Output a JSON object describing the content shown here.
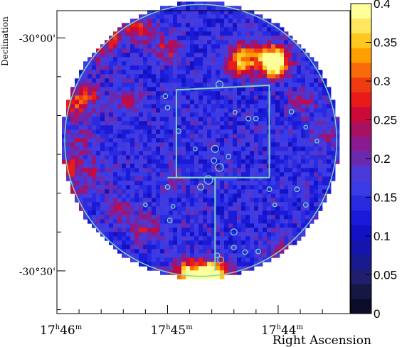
{
  "chart_data": {
    "type": "heatmap",
    "title": "",
    "xlabel": "Right Ascension",
    "ylabel": "Declination",
    "x_ticks": [
      {
        "h": "17",
        "m": "46",
        "ra_min": 0
      },
      {
        "h": "17",
        "m": "45",
        "ra_min": -1
      },
      {
        "h": "17",
        "m": "44",
        "ra_min": -2
      }
    ],
    "x_range_ra_min": [
      0,
      -2.65
    ],
    "y_ticks": [
      {
        "label": "-30°00'",
        "dec_arcmin": 0
      },
      {
        "label": "-30°30'",
        "dec_arcmin": -30
      }
    ],
    "y_range_dec_arcmin": [
      3.5,
      -35.5
    ],
    "colorbar": {
      "min": 0,
      "max": 0.4,
      "ticks": [
        "0",
        "0.05",
        "0.1",
        "0.15",
        "0.2",
        "0.25",
        "0.3",
        "0.35",
        "0.4"
      ],
      "colors": [
        "#0b0b2a",
        "#171746",
        "#1f1f6e",
        "#1a1a90",
        "#1515ad",
        "#1212c4",
        "#1a1ad8",
        "#2a2ae0",
        "#3a3ae6",
        "#4a3ad8",
        "#6a2ab0",
        "#8a1a90",
        "#aa1060",
        "#cc0a3a",
        "#e81a1a",
        "#f03a10",
        "#f86a0a",
        "#ffa000",
        "#ffc820",
        "#ffe860",
        "#ffff99"
      ]
    },
    "field": {
      "background_value": 0.15,
      "hotspots": [
        {
          "ra_min": -0.72,
          "dec_arcmin": 1.5,
          "value": 0.26
        },
        {
          "ra_min": -0.48,
          "dec_arcmin": 0.8,
          "value": 0.25
        },
        {
          "ra_min": -0.38,
          "dec_arcmin": -1.8,
          "value": 0.22
        },
        {
          "ra_min": -0.98,
          "dec_arcmin": -1.2,
          "value": 0.24
        },
        {
          "ra_min": -1.68,
          "dec_arcmin": -2.1,
          "value": 0.28
        },
        {
          "ra_min": -1.95,
          "dec_arcmin": -3.0,
          "value": 0.36
        },
        {
          "ra_min": -1.92,
          "dec_arcmin": -2.5,
          "value": 0.32
        },
        {
          "ra_min": -1.62,
          "dec_arcmin": -3.2,
          "value": 0.25
        },
        {
          "ra_min": -0.25,
          "dec_arcmin": -7.3,
          "value": 0.26
        },
        {
          "ra_min": -0.1,
          "dec_arcmin": -8.5,
          "value": 0.24
        },
        {
          "ra_min": -0.62,
          "dec_arcmin": -7.6,
          "value": 0.23
        },
        {
          "ra_min": -0.18,
          "dec_arcmin": -13.0,
          "value": 0.22
        },
        {
          "ra_min": -0.08,
          "dec_arcmin": -16.5,
          "value": 0.24
        },
        {
          "ra_min": -0.3,
          "dec_arcmin": -17.0,
          "value": 0.22
        },
        {
          "ra_min": -0.15,
          "dec_arcmin": -20.0,
          "value": 0.21
        },
        {
          "ra_min": -0.55,
          "dec_arcmin": -22.0,
          "value": 0.22
        },
        {
          "ra_min": -0.78,
          "dec_arcmin": -24.2,
          "value": 0.24
        },
        {
          "ra_min": -0.15,
          "dec_arcmin": -26.5,
          "value": 0.21
        },
        {
          "ra_min": -1.15,
          "dec_arcmin": -30.2,
          "value": 0.34
        },
        {
          "ra_min": -1.42,
          "dec_arcmin": -30.5,
          "value": 0.4
        },
        {
          "ra_min": -1.3,
          "dec_arcmin": -30.0,
          "value": 0.3
        },
        {
          "ra_min": -2.2,
          "dec_arcmin": -8.0,
          "value": 0.22
        },
        {
          "ra_min": -2.4,
          "dec_arcmin": -12.0,
          "value": 0.21
        },
        {
          "ra_min": -2.4,
          "dec_arcmin": -24.0,
          "value": 0.21
        },
        {
          "ra_min": -2.0,
          "dec_arcmin": -27.5,
          "value": 0.22
        },
        {
          "ra_min": -1.05,
          "dec_arcmin": -17.5,
          "value": 0.2
        }
      ]
    },
    "footprints": {
      "circle": {
        "center_ra_min": -1.3,
        "center_dec_arcmin": -13.2,
        "radius_arcmin": 17.5
      },
      "square": [
        [
          -1.08,
          -6.7
        ],
        [
          -1.92,
          -6.1
        ],
        [
          -1.92,
          -18.0
        ],
        [
          -1.08,
          -18.0
        ]
      ],
      "lower_rect": [
        [
          -1.0,
          -18.0
        ],
        [
          -1.43,
          -18.0
        ],
        [
          -1.43,
          -30.0
        ]
      ]
    },
    "sources": [
      {
        "ra_min": -1.47,
        "dec_arcmin": -6.0,
        "r": 0.45
      },
      {
        "ra_min": -0.98,
        "dec_arcmin": -7.5,
        "r": 0.3
      },
      {
        "ra_min": -1.0,
        "dec_arcmin": -9.0,
        "r": 0.3
      },
      {
        "ra_min": -1.61,
        "dec_arcmin": -9.6,
        "r": 0.25
      },
      {
        "ra_min": -1.73,
        "dec_arcmin": -10.4,
        "r": 0.3
      },
      {
        "ra_min": -1.8,
        "dec_arcmin": -10.4,
        "r": 0.3
      },
      {
        "ra_min": -2.12,
        "dec_arcmin": -9.5,
        "r": 0.3
      },
      {
        "ra_min": -2.25,
        "dec_arcmin": -11.5,
        "r": 0.25
      },
      {
        "ra_min": -2.35,
        "dec_arcmin": -13.3,
        "r": 0.25
      },
      {
        "ra_min": -1.1,
        "dec_arcmin": -12.0,
        "r": 0.3
      },
      {
        "ra_min": -1.25,
        "dec_arcmin": -14.3,
        "r": 0.25
      },
      {
        "ra_min": -1.43,
        "dec_arcmin": -14.3,
        "r": 0.45
      },
      {
        "ra_min": -1.47,
        "dec_arcmin": -16.7,
        "r": 0.5
      },
      {
        "ra_min": -1.42,
        "dec_arcmin": -15.8,
        "r": 0.35
      },
      {
        "ra_min": -1.55,
        "dec_arcmin": -15.3,
        "r": 0.3
      },
      {
        "ra_min": -1.37,
        "dec_arcmin": -18.3,
        "r": 0.55
      },
      {
        "ra_min": -1.3,
        "dec_arcmin": -19.2,
        "r": 0.4
      },
      {
        "ra_min": -1.0,
        "dec_arcmin": -19.2,
        "r": 0.3
      },
      {
        "ra_min": -1.92,
        "dec_arcmin": -19.5,
        "r": 0.3
      },
      {
        "ra_min": -2.17,
        "dec_arcmin": -19.5,
        "r": 0.3
      },
      {
        "ra_min": -0.8,
        "dec_arcmin": -21.5,
        "r": 0.25
      },
      {
        "ra_min": -1.02,
        "dec_arcmin": -23.5,
        "r": 0.3
      },
      {
        "ra_min": -1.05,
        "dec_arcmin": -21.7,
        "r": 0.25
      },
      {
        "ra_min": -1.6,
        "dec_arcmin": -25.0,
        "r": 0.4
      },
      {
        "ra_min": -1.6,
        "dec_arcmin": -27.0,
        "r": 0.3
      },
      {
        "ra_min": -1.82,
        "dec_arcmin": -27.5,
        "r": 0.3
      },
      {
        "ra_min": -1.45,
        "dec_arcmin": -28.0,
        "r": 0.3
      },
      {
        "ra_min": -1.97,
        "dec_arcmin": -21.5,
        "r": 0.25
      },
      {
        "ra_min": -2.25,
        "dec_arcmin": -21.5,
        "r": 0.3
      },
      {
        "ra_min": -1.48,
        "dec_arcmin": -28.6,
        "r": 0.4
      },
      {
        "ra_min": -1.7,
        "dec_arcmin": -27.6,
        "r": 0.3
      }
    ]
  }
}
